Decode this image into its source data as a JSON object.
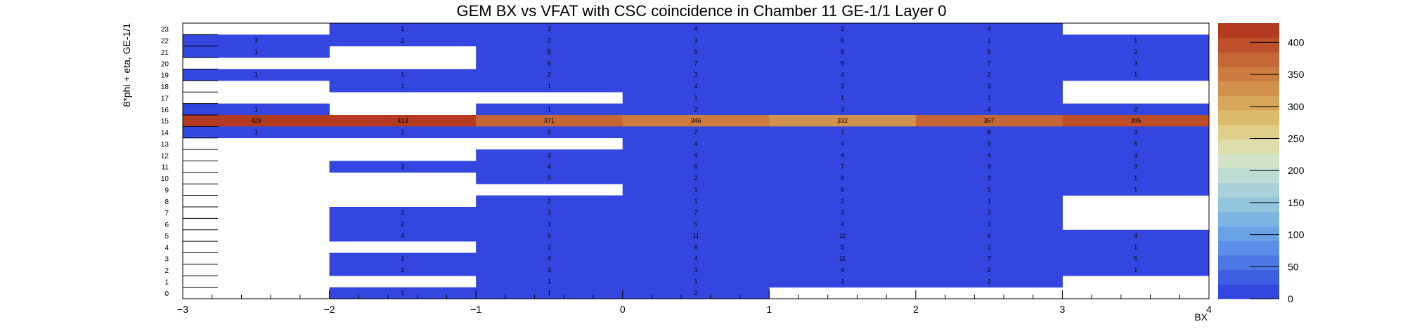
{
  "chart_data": {
    "type": "heatmap",
    "title": "GEM BX vs VFAT with CSC coincidence in Chamber 11 GE-1/1 Layer 0",
    "xlabel": "BX",
    "ylabel": "8*phi + eta, GE-1/1",
    "xlim": [
      -3,
      4
    ],
    "ylim": [
      0,
      24
    ],
    "x_bins": [
      -2.5,
      -1.5,
      -0.5,
      0.5,
      1.5,
      2.5,
      3.5
    ],
    "x_ticks": [
      "−3",
      "−2",
      "−1",
      "0",
      "1",
      "2",
      "3",
      "4"
    ],
    "y_bins": [
      0,
      1,
      2,
      3,
      4,
      5,
      6,
      7,
      8,
      9,
      10,
      11,
      12,
      13,
      14,
      15,
      16,
      17,
      18,
      19,
      20,
      21,
      22,
      23
    ],
    "z_max": 430,
    "palette_ticks": [
      "0",
      "50",
      "100",
      "150",
      "200",
      "250",
      "300",
      "350",
      "400"
    ],
    "palette_colors": [
      "#3346e0",
      "#3f5fe3",
      "#4c78e6",
      "#5a8ee7",
      "#6aa3e5",
      "#7db5e2",
      "#93c4dd",
      "#a8d0d8",
      "#bddcd3",
      "#d1e3c8",
      "#ddddaa",
      "#e0cf8a",
      "#dcbb6a",
      "#d7a658",
      "#d2914c",
      "#cc7c41",
      "#c56636",
      "#be4f2a",
      "#b53a22"
    ],
    "cells": [
      {
        "x": -2.5,
        "y": 22,
        "v": 3
      },
      {
        "x": -2.5,
        "y": 21,
        "v": 1
      },
      {
        "x": -2.5,
        "y": 19,
        "v": 1
      },
      {
        "x": -2.5,
        "y": 16,
        "v": 1
      },
      {
        "x": -2.5,
        "y": 15,
        "v": 429
      },
      {
        "x": -2.5,
        "y": 14,
        "v": 1
      },
      {
        "x": -1.5,
        "y": 23,
        "v": 1
      },
      {
        "x": -1.5,
        "y": 22,
        "v": 2
      },
      {
        "x": -1.5,
        "y": 19,
        "v": 1
      },
      {
        "x": -1.5,
        "y": 18,
        "v": 1
      },
      {
        "x": -1.5,
        "y": 15,
        "v": 413
      },
      {
        "x": -1.5,
        "y": 14,
        "v": 1
      },
      {
        "x": -1.5,
        "y": 11,
        "v": 2
      },
      {
        "x": -1.5,
        "y": 7,
        "v": 2
      },
      {
        "x": -1.5,
        "y": 6,
        "v": 2
      },
      {
        "x": -1.5,
        "y": 5,
        "v": 4
      },
      {
        "x": -1.5,
        "y": 3,
        "v": 1
      },
      {
        "x": -1.5,
        "y": 2,
        "v": 1
      },
      {
        "x": -1.5,
        "y": 0,
        "v": 1
      },
      {
        "x": -0.5,
        "y": 23,
        "v": 3
      },
      {
        "x": -0.5,
        "y": 22,
        "v": 2
      },
      {
        "x": -0.5,
        "y": 21,
        "v": 5
      },
      {
        "x": -0.5,
        "y": 20,
        "v": 6
      },
      {
        "x": -0.5,
        "y": 19,
        "v": 2
      },
      {
        "x": -0.5,
        "y": 18,
        "v": 1
      },
      {
        "x": -0.5,
        "y": 16,
        "v": 1
      },
      {
        "x": -0.5,
        "y": 15,
        "v": 371
      },
      {
        "x": -0.5,
        "y": 14,
        "v": 5
      },
      {
        "x": -0.5,
        "y": 12,
        "v": 3
      },
      {
        "x": -0.5,
        "y": 11,
        "v": 4
      },
      {
        "x": -0.5,
        "y": 10,
        "v": 5
      },
      {
        "x": -0.5,
        "y": 8,
        "v": 2
      },
      {
        "x": -0.5,
        "y": 7,
        "v": 3
      },
      {
        "x": -0.5,
        "y": 6,
        "v": 1
      },
      {
        "x": -0.5,
        "y": 5,
        "v": 5
      },
      {
        "x": -0.5,
        "y": 4,
        "v": 2
      },
      {
        "x": -0.5,
        "y": 3,
        "v": 4
      },
      {
        "x": -0.5,
        "y": 2,
        "v": 3
      },
      {
        "x": -0.5,
        "y": 1,
        "v": 1
      },
      {
        "x": -0.5,
        "y": 0,
        "v": 1
      },
      {
        "x": 0.5,
        "y": 23,
        "v": 4
      },
      {
        "x": 0.5,
        "y": 22,
        "v": 3
      },
      {
        "x": 0.5,
        "y": 21,
        "v": 5
      },
      {
        "x": 0.5,
        "y": 20,
        "v": 7
      },
      {
        "x": 0.5,
        "y": 19,
        "v": 3
      },
      {
        "x": 0.5,
        "y": 18,
        "v": 4
      },
      {
        "x": 0.5,
        "y": 17,
        "v": 1
      },
      {
        "x": 0.5,
        "y": 16,
        "v": 2
      },
      {
        "x": 0.5,
        "y": 15,
        "v": 346
      },
      {
        "x": 0.5,
        "y": 14,
        "v": 7
      },
      {
        "x": 0.5,
        "y": 13,
        "v": 4
      },
      {
        "x": 0.5,
        "y": 12,
        "v": 4
      },
      {
        "x": 0.5,
        "y": 11,
        "v": 6
      },
      {
        "x": 0.5,
        "y": 10,
        "v": 2
      },
      {
        "x": 0.5,
        "y": 9,
        "v": 1
      },
      {
        "x": 0.5,
        "y": 8,
        "v": 1
      },
      {
        "x": 0.5,
        "y": 7,
        "v": 7
      },
      {
        "x": 0.5,
        "y": 6,
        "v": 5
      },
      {
        "x": 0.5,
        "y": 5,
        "v": 11
      },
      {
        "x": 0.5,
        "y": 4,
        "v": 8
      },
      {
        "x": 0.5,
        "y": 3,
        "v": 4
      },
      {
        "x": 0.5,
        "y": 2,
        "v": 3
      },
      {
        "x": 0.5,
        "y": 1,
        "v": 1
      },
      {
        "x": 0.5,
        "y": 0,
        "v": 2
      },
      {
        "x": 1.5,
        "y": 23,
        "v": 2
      },
      {
        "x": 1.5,
        "y": 22,
        "v": 6
      },
      {
        "x": 1.5,
        "y": 21,
        "v": 5
      },
      {
        "x": 1.5,
        "y": 20,
        "v": 5
      },
      {
        "x": 1.5,
        "y": 19,
        "v": 4
      },
      {
        "x": 1.5,
        "y": 18,
        "v": 2
      },
      {
        "x": 1.5,
        "y": 17,
        "v": 1
      },
      {
        "x": 1.5,
        "y": 16,
        "v": 3
      },
      {
        "x": 1.5,
        "y": 15,
        "v": 332
      },
      {
        "x": 1.5,
        "y": 14,
        "v": 7
      },
      {
        "x": 1.5,
        "y": 13,
        "v": 4
      },
      {
        "x": 1.5,
        "y": 12,
        "v": 4
      },
      {
        "x": 1.5,
        "y": 11,
        "v": 7
      },
      {
        "x": 1.5,
        "y": 10,
        "v": 6
      },
      {
        "x": 1.5,
        "y": 9,
        "v": 6
      },
      {
        "x": 1.5,
        "y": 8,
        "v": 2
      },
      {
        "x": 1.5,
        "y": 7,
        "v": 3
      },
      {
        "x": 1.5,
        "y": 6,
        "v": 4
      },
      {
        "x": 1.5,
        "y": 5,
        "v": 11
      },
      {
        "x": 1.5,
        "y": 4,
        "v": 5
      },
      {
        "x": 1.5,
        "y": 3,
        "v": 11
      },
      {
        "x": 1.5,
        "y": 2,
        "v": 4
      },
      {
        "x": 1.5,
        "y": 1,
        "v": 3
      },
      {
        "x": 2.5,
        "y": 23,
        "v": 4
      },
      {
        "x": 2.5,
        "y": 22,
        "v": 1
      },
      {
        "x": 2.5,
        "y": 21,
        "v": 5
      },
      {
        "x": 2.5,
        "y": 20,
        "v": 7
      },
      {
        "x": 2.5,
        "y": 19,
        "v": 2
      },
      {
        "x": 2.5,
        "y": 18,
        "v": 3
      },
      {
        "x": 2.5,
        "y": 17,
        "v": 1
      },
      {
        "x": 2.5,
        "y": 16,
        "v": 4
      },
      {
        "x": 2.5,
        "y": 15,
        "v": 367
      },
      {
        "x": 2.5,
        "y": 14,
        "v": 8
      },
      {
        "x": 2.5,
        "y": 13,
        "v": 9
      },
      {
        "x": 2.5,
        "y": 12,
        "v": 4
      },
      {
        "x": 2.5,
        "y": 11,
        "v": 3
      },
      {
        "x": 2.5,
        "y": 10,
        "v": 3
      },
      {
        "x": 2.5,
        "y": 9,
        "v": 5
      },
      {
        "x": 2.5,
        "y": 8,
        "v": 1
      },
      {
        "x": 2.5,
        "y": 7,
        "v": 3
      },
      {
        "x": 2.5,
        "y": 6,
        "v": 1
      },
      {
        "x": 2.5,
        "y": 5,
        "v": 6
      },
      {
        "x": 2.5,
        "y": 4,
        "v": 2
      },
      {
        "x": 2.5,
        "y": 3,
        "v": 7
      },
      {
        "x": 2.5,
        "y": 2,
        "v": 2
      },
      {
        "x": 2.5,
        "y": 1,
        "v": 2
      },
      {
        "x": 3.5,
        "y": 22,
        "v": 1
      },
      {
        "x": 3.5,
        "y": 21,
        "v": 2
      },
      {
        "x": 3.5,
        "y": 20,
        "v": 3
      },
      {
        "x": 3.5,
        "y": 19,
        "v": 1
      },
      {
        "x": 3.5,
        "y": 16,
        "v": 2
      },
      {
        "x": 3.5,
        "y": 15,
        "v": 395
      },
      {
        "x": 3.5,
        "y": 14,
        "v": 3
      },
      {
        "x": 3.5,
        "y": 13,
        "v": 5
      },
      {
        "x": 3.5,
        "y": 12,
        "v": 3
      },
      {
        "x": 3.5,
        "y": 11,
        "v": 3
      },
      {
        "x": 3.5,
        "y": 10,
        "v": 1
      },
      {
        "x": 3.5,
        "y": 9,
        "v": 1
      },
      {
        "x": 3.5,
        "y": 5,
        "v": 4
      },
      {
        "x": 3.5,
        "y": 4,
        "v": 1
      },
      {
        "x": 3.5,
        "y": 3,
        "v": 5
      },
      {
        "x": 3.5,
        "y": 2,
        "v": 1
      }
    ]
  }
}
